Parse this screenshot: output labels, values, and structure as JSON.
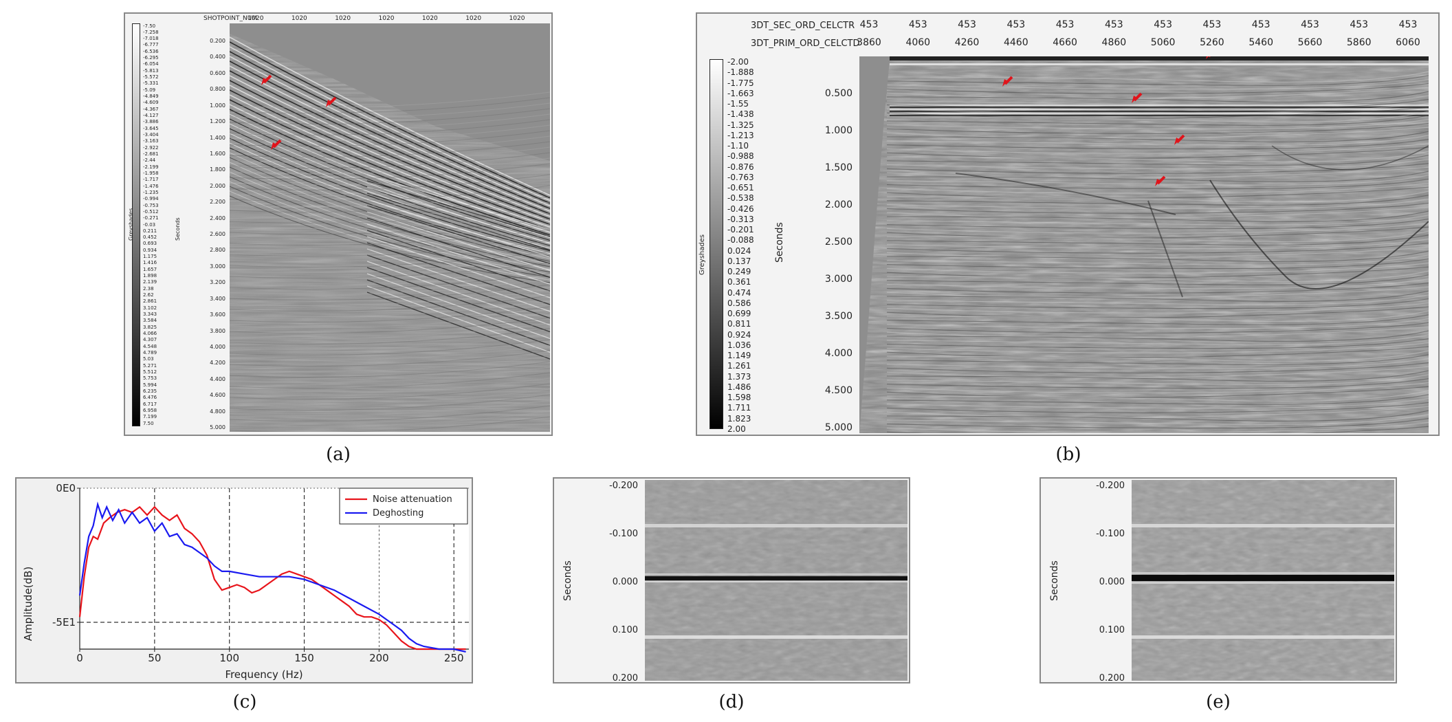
{
  "panel_a": {
    "caption": "(a)",
    "header_label": "SHOTPOINT_NUM",
    "header_values": [
      "1020",
      "1020",
      "1020",
      "1020",
      "1020",
      "1020",
      "1020"
    ],
    "axis_title": "Seconds",
    "colorbar_title": "Greyshades",
    "y_ticks": [
      "0.200",
      "0.400",
      "0.600",
      "0.800",
      "1.000",
      "1.200",
      "1.400",
      "1.600",
      "1.800",
      "2.000",
      "2.200",
      "2.400",
      "2.600",
      "2.800",
      "3.000",
      "3.200",
      "3.400",
      "3.600",
      "3.800",
      "4.000",
      "4.200",
      "4.400",
      "4.600",
      "4.800",
      "5.000"
    ],
    "colorbar_labels": [
      "-7.50",
      "-7.258",
      "-7.018",
      "-6.777",
      "-6.536",
      "-6.295",
      "-6.054",
      "-5.813",
      "-5.572",
      "-5.331",
      "-5.09",
      "-4.849",
      "-4.609",
      "-4.367",
      "-4.127",
      "-3.886",
      "-3.645",
      "-3.404",
      "-3.163",
      "-2.922",
      "-2.681",
      "-2.44",
      "-2.199",
      "-1.958",
      "-1.717",
      "-1.476",
      "-1.235",
      "-0.994",
      "-0.753",
      "-0.512",
      "-0.271",
      "-0.03",
      "0.211",
      "0.452",
      "0.693",
      "0.934",
      "1.175",
      "1.416",
      "1.657",
      "1.898",
      "2.139",
      "2.38",
      "2.62",
      "2.861",
      "3.102",
      "3.343",
      "3.584",
      "3.825",
      "4.066",
      "4.307",
      "4.548",
      "4.789",
      "5.03",
      "5.271",
      "5.512",
      "5.753",
      "5.994",
      "6.235",
      "6.476",
      "6.717",
      "6.958",
      "7.199",
      "7.50"
    ]
  },
  "panel_b": {
    "caption": "(b)",
    "header1_label": "3DT_SEC_ORD_CELCTR",
    "header1_values": [
      "453",
      "453",
      "453",
      "453",
      "453",
      "453",
      "453",
      "453",
      "453",
      "453",
      "453",
      "453"
    ],
    "header2_label": "3DT_PRIM_ORD_CELCTD",
    "header2_values": [
      "3860",
      "4060",
      "4260",
      "4460",
      "4660",
      "4860",
      "5060",
      "5260",
      "5460",
      "5660",
      "5860",
      "6060"
    ],
    "axis_title": "Seconds",
    "colorbar_title": "Greyshades",
    "y_ticks": [
      "0.500",
      "1.000",
      "1.500",
      "2.000",
      "2.500",
      "3.000",
      "3.500",
      "4.000",
      "4.500",
      "5.000"
    ],
    "colorbar_labels": [
      "-2.00",
      "-1.888",
      "-1.775",
      "-1.663",
      "-1.55",
      "-1.438",
      "-1.325",
      "-1.213",
      "-1.10",
      "-0.988",
      "-0.876",
      "-0.763",
      "-0.651",
      "-0.538",
      "-0.426",
      "-0.313",
      "-0.201",
      "-0.088",
      "0.024",
      "0.137",
      "0.249",
      "0.361",
      "0.474",
      "0.586",
      "0.699",
      "0.811",
      "0.924",
      "1.036",
      "1.149",
      "1.261",
      "1.373",
      "1.486",
      "1.598",
      "1.711",
      "1.823",
      "2.00"
    ]
  },
  "panel_c": {
    "caption": "(c)",
    "chart_data": {
      "type": "line",
      "xlabel": "Frequency (Hz)",
      "ylabel": "Amplitude(dB)",
      "xlim": [
        0,
        260
      ],
      "ylim": [
        -60,
        0
      ],
      "x_ticks": [
        "0",
        "50",
        "100",
        "150",
        "200",
        "250"
      ],
      "y_ticks": [
        "0E0",
        "-5E1"
      ],
      "y_tick_values": [
        0,
        -50
      ],
      "legend_position": "top-right",
      "grid": "dashed",
      "series": [
        {
          "name": "Noise attenuation",
          "color": "#e8141b",
          "x": [
            0,
            3,
            6,
            9,
            12,
            16,
            20,
            25,
            30,
            35,
            40,
            45,
            50,
            55,
            60,
            65,
            70,
            75,
            80,
            85,
            90,
            95,
            100,
            105,
            110,
            115,
            120,
            125,
            130,
            135,
            140,
            145,
            150,
            155,
            160,
            165,
            170,
            175,
            180,
            185,
            190,
            195,
            200,
            205,
            210,
            215,
            220,
            225,
            230,
            235,
            240,
            250,
            258
          ],
          "y": [
            -48,
            -33,
            -22,
            -18,
            -19,
            -13,
            -11,
            -9,
            -8,
            -9,
            -7,
            -10,
            -7,
            -10,
            -12,
            -10,
            -15,
            -17,
            -20,
            -25,
            -34,
            -38,
            -37,
            -36,
            -37,
            -39,
            -38,
            -36,
            -34,
            -32,
            -31,
            -32,
            -33,
            -34,
            -36,
            -38,
            -40,
            -42,
            -44,
            -47,
            -48,
            -48,
            -49,
            -51,
            -54,
            -57,
            -59,
            -60,
            -60,
            -60,
            -60,
            -60,
            -60
          ]
        },
        {
          "name": "Deghosting",
          "color": "#1a1af0",
          "x": [
            0,
            3,
            6,
            9,
            12,
            15,
            18,
            22,
            26,
            30,
            35,
            40,
            45,
            50,
            55,
            60,
            65,
            70,
            75,
            80,
            85,
            90,
            95,
            100,
            110,
            120,
            130,
            140,
            150,
            160,
            170,
            180,
            190,
            200,
            205,
            210,
            215,
            220,
            225,
            230,
            240,
            250,
            258
          ],
          "y": [
            -40,
            -28,
            -18,
            -14,
            -6,
            -11,
            -7,
            -12,
            -8,
            -13,
            -9,
            -13,
            -11,
            -16,
            -13,
            -18,
            -17,
            -21,
            -22,
            -24,
            -26,
            -29,
            -31,
            -31,
            -32,
            -33,
            -33,
            -33,
            -34,
            -36,
            -38,
            -41,
            -44,
            -47,
            -49,
            -51,
            -53,
            -56,
            -58,
            -59,
            -60,
            -60,
            -61
          ]
        }
      ]
    }
  },
  "panel_d": {
    "caption": "(d)",
    "axis_title": "Seconds",
    "y_ticks": [
      "-0.200",
      "-0.100",
      "0.000",
      "0.100",
      "0.200"
    ]
  },
  "panel_e": {
    "caption": "(e)",
    "axis_title": "Seconds",
    "y_ticks": [
      "-0.200",
      "-0.100",
      "0.000",
      "0.100",
      "0.200"
    ]
  },
  "colors": {
    "seismic_mid": "#8e8e8e",
    "arrow": "#e0141b",
    "panel_bg": "#f3f3f3",
    "panel_border": "#888888"
  }
}
